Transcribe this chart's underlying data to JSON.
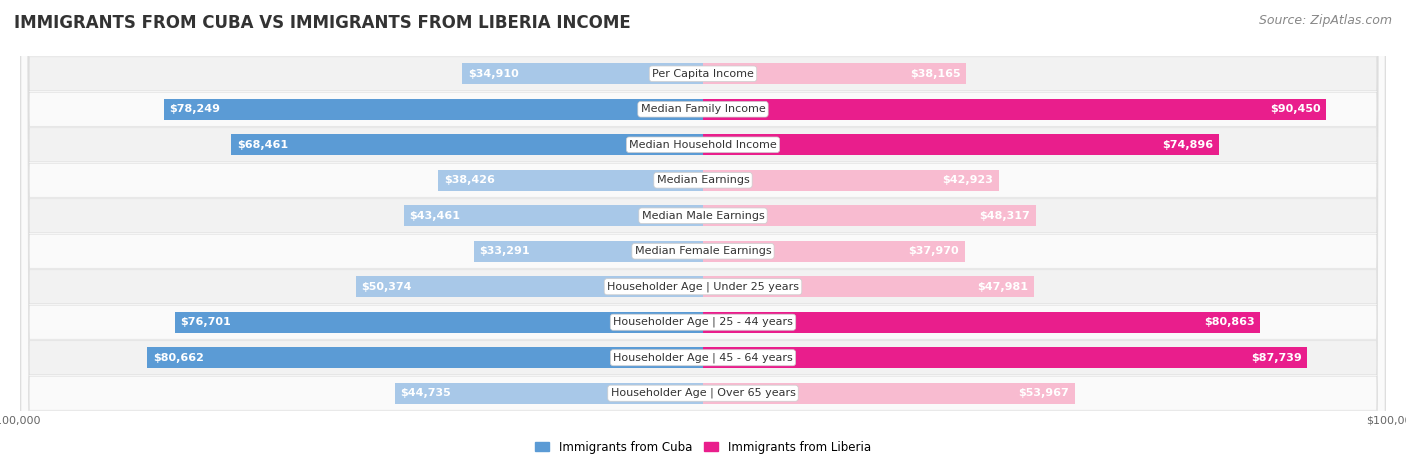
{
  "title": "IMMIGRANTS FROM CUBA VS IMMIGRANTS FROM LIBERIA INCOME",
  "source": "Source: ZipAtlas.com",
  "categories": [
    "Per Capita Income",
    "Median Family Income",
    "Median Household Income",
    "Median Earnings",
    "Median Male Earnings",
    "Median Female Earnings",
    "Householder Age | Under 25 years",
    "Householder Age | 25 - 44 years",
    "Householder Age | 45 - 64 years",
    "Householder Age | Over 65 years"
  ],
  "cuba_values": [
    34910,
    78249,
    68461,
    38426,
    43461,
    33291,
    50374,
    76701,
    80662,
    44735
  ],
  "liberia_values": [
    38165,
    90450,
    74896,
    42923,
    48317,
    37970,
    47981,
    80863,
    87739,
    53967
  ],
  "cuba_color_light": "#a8c8e8",
  "cuba_color_dark": "#5b9bd5",
  "liberia_color_light": "#f8bbd0",
  "liberia_color_dark": "#e91e8c",
  "cuba_label": "Immigrants from Cuba",
  "liberia_label": "Immigrants from Liberia",
  "max_value": 100000,
  "title_fontsize": 12,
  "source_fontsize": 9,
  "bar_label_fontsize": 8,
  "category_fontsize": 8,
  "axis_label_fontsize": 8,
  "background_color": "#ffffff",
  "row_bg_even": "#f2f2f2",
  "row_bg_odd": "#fafafa",
  "row_border": "#dddddd",
  "threshold_dark": 55000
}
